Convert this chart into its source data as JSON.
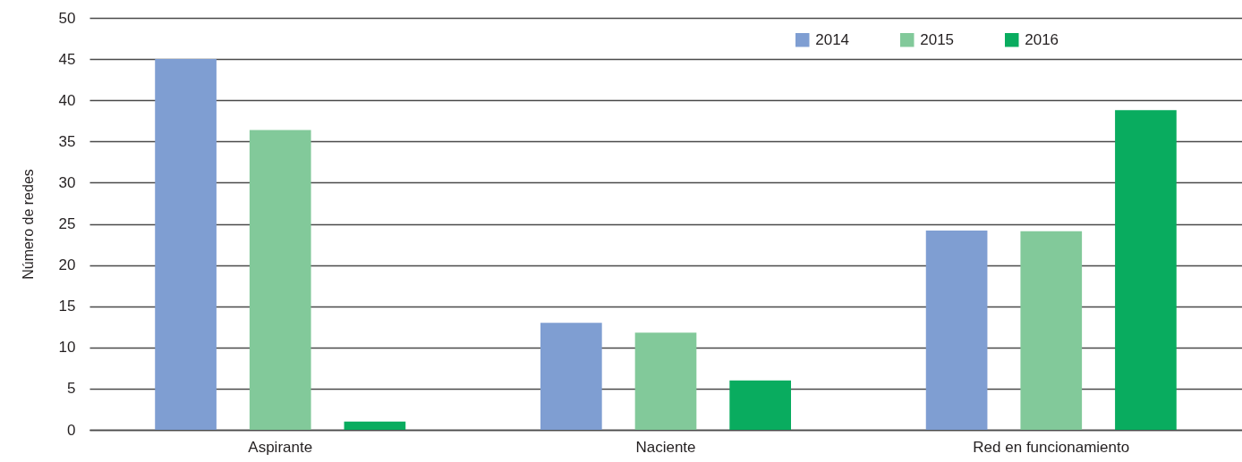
{
  "chart_data": {
    "type": "bar",
    "ylabel": "Número de redes",
    "categories": [
      "Aspirante",
      "Naciente",
      "Red en funcionamiento"
    ],
    "series": [
      {
        "name": "2014",
        "color": "#7f9ed2",
        "values": [
          45,
          13,
          24.2
        ]
      },
      {
        "name": "2015",
        "color": "#82c99a",
        "values": [
          36.4,
          11.8,
          24.1
        ]
      },
      {
        "name": "2016",
        "color": "#09ac5f",
        "values": [
          1,
          6,
          38.8
        ]
      }
    ],
    "ylim": [
      0,
      50
    ],
    "yticks": [
      0,
      5,
      10,
      15,
      20,
      25,
      30,
      35,
      40,
      45,
      50
    ],
    "grid": "y",
    "legend": "top right"
  }
}
